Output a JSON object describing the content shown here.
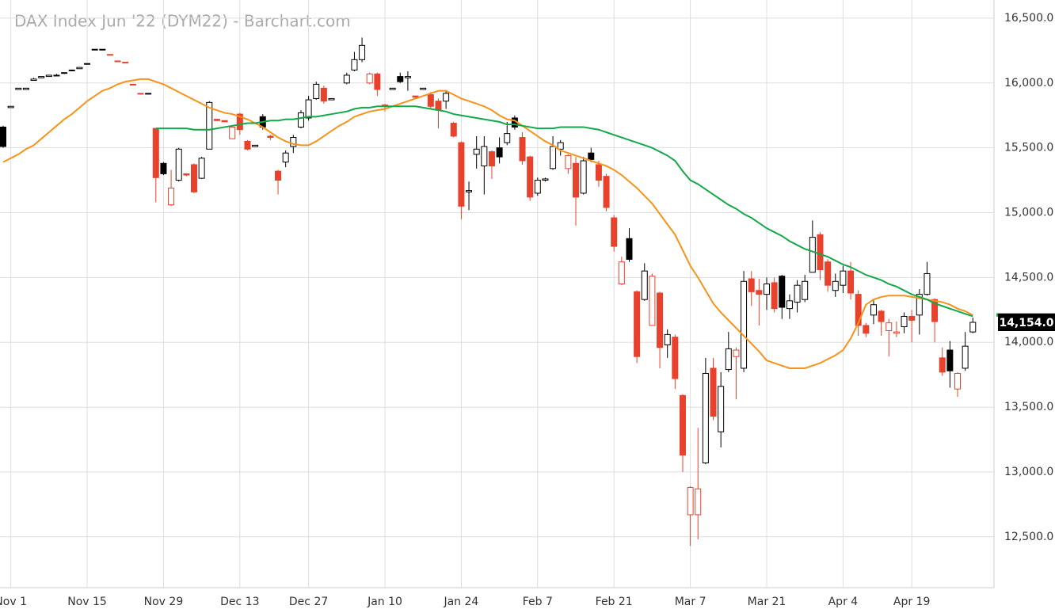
{
  "chart_data": {
    "type": "candlestick",
    "title": "DAX Index Jun '22 (DYM22) - Barchart.com",
    "last_price_label": "14,154.0",
    "up_color": "#000000",
    "down_color": "#e8412c",
    "grid": true,
    "categories": [
      null,
      "Nov 1",
      null,
      null,
      null,
      null,
      null,
      null,
      null,
      null,
      null,
      "Nov 15",
      null,
      null,
      null,
      null,
      null,
      null,
      null,
      null,
      null,
      "Nov 29",
      null,
      null,
      null,
      null,
      null,
      null,
      null,
      null,
      null,
      "Dec 13",
      null,
      null,
      null,
      null,
      null,
      null,
      null,
      null,
      "Dec 27",
      null,
      null,
      null,
      null,
      null,
      null,
      null,
      null,
      null,
      "Jan 10",
      null,
      null,
      null,
      null,
      null,
      null,
      null,
      null,
      null,
      "Jan 24",
      null,
      null,
      null,
      null,
      null,
      null,
      null,
      null,
      null,
      "Feb 7",
      null,
      null,
      null,
      null,
      null,
      null,
      null,
      null,
      null,
      "Feb 21",
      null,
      null,
      null,
      null,
      null,
      null,
      null,
      null,
      null,
      "Mar 7",
      null,
      null,
      null,
      null,
      null,
      null,
      null,
      null,
      null,
      "Mar 21",
      null,
      null,
      null,
      null,
      null,
      null,
      null,
      null,
      null,
      "Apr 4",
      null,
      null,
      null,
      null,
      null,
      null,
      null,
      null,
      "Apr 19",
      null,
      null,
      null,
      null,
      null,
      null,
      null,
      null
    ],
    "open": [
      15660,
      15810,
      15950,
      15950,
      16020,
      16040,
      16050,
      16060,
      16080,
      16100,
      16110,
      16150,
      16260,
      16260,
      16220,
      16170,
      16160,
      15990,
      15920,
      15920,
      15650,
      15380,
      15060,
      15250,
      15300,
      15370,
      15265,
      15490,
      15720,
      15710,
      15570,
      15760,
      15550,
      15510,
      15740,
      15590,
      15320,
      15390,
      15510,
      15660,
      15730,
      15880,
      15960,
      15870,
      null,
      16000,
      16100,
      16180,
      16000,
      16070,
      15830,
      15950,
      16050,
      16040,
      15900,
      15950,
      15910,
      15860,
      15860,
      15690,
      15540,
      15160,
      15450,
      15360,
      15470,
      15500,
      15540,
      15730,
      15580,
      15430,
      15150,
      15250,
      15340,
      15490,
      15340,
      15380,
      15150,
      15460,
      15370,
      15280,
      14960,
      14450,
      14800,
      14390,
      14330,
      14130,
      14380,
      13980,
      14040,
      13590,
      12670,
      12670,
      13070,
      13800,
      13310,
      13790,
      13890,
      13800,
      14490,
      14400,
      14370,
      14460,
      14510,
      14260,
      14310,
      14330,
      14540,
      14830,
      14620,
      14400,
      14440,
      14550,
      14370,
      14130,
      14210,
      14240,
      14090,
      14070,
      14120,
      14200,
      14210,
      14370,
      14330,
      13880,
      13940,
      13640,
      13800,
      14080
    ],
    "high": [
      15670,
      15820,
      15960,
      15960,
      16040,
      16050,
      16060,
      16070,
      16080,
      16100,
      16120,
      16150,
      16260,
      16260,
      16220,
      16170,
      16160,
      15990,
      15920,
      15920,
      15650,
      15390,
      15330,
      15500,
      15300,
      15380,
      15430,
      15860,
      15720,
      15710,
      15670,
      15770,
      15560,
      15520,
      15760,
      15600,
      15330,
      15480,
      15600,
      15790,
      15900,
      16010,
      15980,
      15880,
      null,
      16080,
      16240,
      16350,
      16080,
      16080,
      15840,
      15960,
      16080,
      16090,
      15900,
      15960,
      15930,
      15880,
      15940,
      15700,
      15550,
      15240,
      15590,
      15590,
      15480,
      15580,
      15700,
      15750,
      15620,
      15440,
      15270,
      15270,
      15590,
      15560,
      15450,
      15430,
      15430,
      15500,
      15400,
      15300,
      14980,
      14660,
      14880,
      14400,
      14610,
      14530,
      14390,
      14100,
      14060,
      13600,
      12890,
      13340,
      13880,
      13880,
      13770,
      14080,
      13960,
      14550,
      14550,
      14490,
      14500,
      14500,
      14520,
      14370,
      14480,
      14520,
      14940,
      14850,
      14640,
      14530,
      14590,
      14620,
      14400,
      14150,
      14330,
      14250,
      14180,
      14160,
      14230,
      14250,
      14410,
      14620,
      14340,
      13960,
      14010,
      13770,
      14080,
      14190
    ],
    "low": [
      15500,
      15810,
      15950,
      15950,
      16020,
      16040,
      16050,
      16060,
      16070,
      16090,
      16110,
      16150,
      16260,
      16260,
      16220,
      16170,
      16160,
      15990,
      15920,
      15920,
      15080,
      15290,
      15050,
      15240,
      15280,
      15150,
      15260,
      15490,
      15710,
      15700,
      15570,
      15600,
      15480,
      15510,
      15640,
      15560,
      15140,
      15350,
      15460,
      15650,
      15710,
      15870,
      15840,
      15870,
      null,
      15990,
      16090,
      16160,
      15990,
      15900,
      15780,
      15950,
      16000,
      15940,
      15890,
      15950,
      15800,
      15650,
      15800,
      15580,
      14950,
      15020,
      15340,
      15140,
      15260,
      15380,
      15520,
      15640,
      15370,
      15090,
      15130,
      15240,
      15330,
      15440,
      15300,
      14900,
      15140,
      15390,
      15200,
      15010,
      14700,
      14440,
      14620,
      13840,
      14320,
      14130,
      13800,
      13880,
      13640,
      13000,
      12430,
      12480,
      13060,
      13400,
      13190,
      13770,
      13560,
      13770,
      14280,
      14130,
      14250,
      14230,
      14180,
      14180,
      14230,
      14310,
      14540,
      14480,
      14390,
      14350,
      14380,
      14330,
      14050,
      14040,
      14140,
      14050,
      13890,
      14040,
      14070,
      14000,
      14060,
      14360,
      14000,
      13740,
      13650,
      13580,
      13780,
      14070
    ],
    "close": [
      15510,
      15820,
      15960,
      15960,
      16030,
      16050,
      16060,
      16060,
      16080,
      16100,
      16120,
      16150,
      16260,
      16260,
      16220,
      16170,
      16160,
      15990,
      15920,
      15920,
      15270,
      15300,
      15190,
      15490,
      15290,
      15160,
      15420,
      15850,
      15710,
      15700,
      15660,
      15640,
      15490,
      15520,
      15660,
      15580,
      15250,
      15460,
      15580,
      15770,
      15870,
      15990,
      15860,
      15880,
      null,
      16060,
      16180,
      16290,
      16070,
      15950,
      15820,
      15960,
      16010,
      16050,
      15890,
      15960,
      15820,
      15790,
      15920,
      15590,
      15050,
      15170,
      15490,
      15510,
      15360,
      15430,
      15610,
      15660,
      15400,
      15120,
      15250,
      15260,
      15510,
      15540,
      15440,
      15120,
      15400,
      15410,
      15250,
      15040,
      14740,
      14620,
      14640,
      13890,
      14550,
      14510,
      13960,
      14060,
      13720,
      13130,
      12880,
      12870,
      13760,
      13430,
      13660,
      13950,
      13940,
      14470,
      14390,
      14370,
      14450,
      14260,
      14270,
      14320,
      14440,
      14470,
      14810,
      14560,
      14440,
      14470,
      14550,
      14380,
      14130,
      14070,
      14290,
      14160,
      14150,
      14080,
      14200,
      14170,
      14370,
      14530,
      14160,
      13770,
      13780,
      13760,
      13970,
      14154
    ],
    "series": [
      {
        "color": "#f7931a",
        "values": [
          15390,
          15420,
          15450,
          15490,
          15520,
          15570,
          15620,
          15670,
          15720,
          15760,
          15810,
          15860,
          15900,
          15940,
          15960,
          15990,
          16010,
          16020,
          16030,
          16030,
          16010,
          15990,
          15960,
          15930,
          15900,
          15870,
          15840,
          15810,
          15790,
          15770,
          15760,
          15740,
          15720,
          15690,
          15660,
          15620,
          15580,
          15550,
          15530,
          15520,
          15520,
          15550,
          15590,
          15630,
          15670,
          15700,
          15740,
          15760,
          15780,
          15790,
          15800,
          15820,
          15840,
          15860,
          15880,
          15900,
          15920,
          15940,
          15940,
          15910,
          15880,
          15860,
          15840,
          15820,
          15790,
          15750,
          15720,
          15710,
          15670,
          15630,
          15590,
          15550,
          15520,
          15480,
          15460,
          15440,
          15420,
          15400,
          15380,
          15360,
          15330,
          15290,
          15240,
          15190,
          15130,
          15070,
          14990,
          14910,
          14830,
          14710,
          14590,
          14500,
          14400,
          14300,
          14230,
          14170,
          14110,
          14050,
          13990,
          13930,
          13860,
          13840,
          13820,
          13800,
          13800,
          13800,
          13820,
          13840,
          13870,
          13900,
          13940,
          14030,
          14150,
          14290,
          14330,
          14350,
          14360,
          14360,
          14360,
          14350,
          14340,
          14330,
          14320,
          14310,
          14290,
          14260,
          14240,
          14210
        ]
      },
      {
        "color": "#13a84a",
        "values": [
          null,
          null,
          null,
          null,
          null,
          null,
          null,
          null,
          null,
          null,
          null,
          null,
          null,
          null,
          null,
          null,
          null,
          null,
          null,
          null,
          15650,
          15650,
          15650,
          15650,
          15650,
          15640,
          15640,
          15640,
          15650,
          15660,
          15670,
          15680,
          15690,
          15690,
          15700,
          15710,
          15710,
          15720,
          15720,
          15730,
          15740,
          15740,
          15750,
          15760,
          15770,
          15780,
          15800,
          15810,
          15810,
          15820,
          15820,
          15820,
          15820,
          15820,
          15820,
          15810,
          15800,
          15790,
          15780,
          15760,
          15750,
          15740,
          15730,
          15720,
          15710,
          15700,
          15680,
          15680,
          15670,
          15660,
          15650,
          15650,
          15650,
          15660,
          15660,
          15660,
          15660,
          15650,
          15640,
          15620,
          15600,
          15580,
          15560,
          15540,
          15520,
          15500,
          15470,
          15440,
          15400,
          15320,
          15250,
          15220,
          15180,
          15140,
          15100,
          15060,
          15030,
          14990,
          14960,
          14920,
          14880,
          14850,
          14820,
          14780,
          14750,
          14720,
          14700,
          14680,
          14660,
          14630,
          14600,
          14580,
          14550,
          14520,
          14500,
          14480,
          14450,
          14430,
          14400,
          14370,
          14350,
          14330,
          14300,
          14280,
          14260,
          14240,
          14220,
          14200
        ]
      }
    ],
    "ylim": [
      12120,
      16640
    ],
    "yticks": [
      {
        "value": 12500,
        "label": "12,500.0"
      },
      {
        "value": 13000,
        "label": "13,000.0"
      },
      {
        "value": 13500,
        "label": "13,500.0"
      },
      {
        "value": 14000,
        "label": "14,000.0"
      },
      {
        "value": 14500,
        "label": "14,500.0"
      },
      {
        "value": 15000,
        "label": "15,000.0"
      },
      {
        "value": 15500,
        "label": "15,500.0"
      },
      {
        "value": 16000,
        "label": "16,000.0"
      },
      {
        "value": 16500,
        "label": "16,500.0"
      }
    ]
  }
}
